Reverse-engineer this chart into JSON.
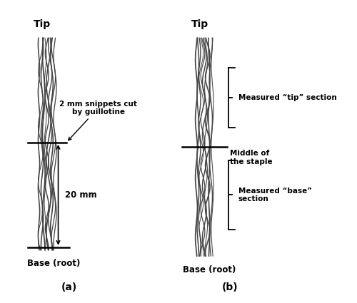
{
  "fig_width": 5.0,
  "fig_height": 4.25,
  "dpi": 100,
  "background": "#ffffff",
  "label_a": "(a)",
  "label_b": "(b)",
  "tip_label": "Tip",
  "base_label": "Base (root)",
  "snippet_label": "2 mm snippets cut\nby guillotine",
  "mm20_label": "20 mm",
  "middle_label": "Middle of\nthe staple",
  "tip_section_label": "Measured “tip” section",
  "base_section_label": "Measured “base”\nsection",
  "fiber_color": "#444444",
  "line_color": "#000000",
  "text_color": "#000000"
}
